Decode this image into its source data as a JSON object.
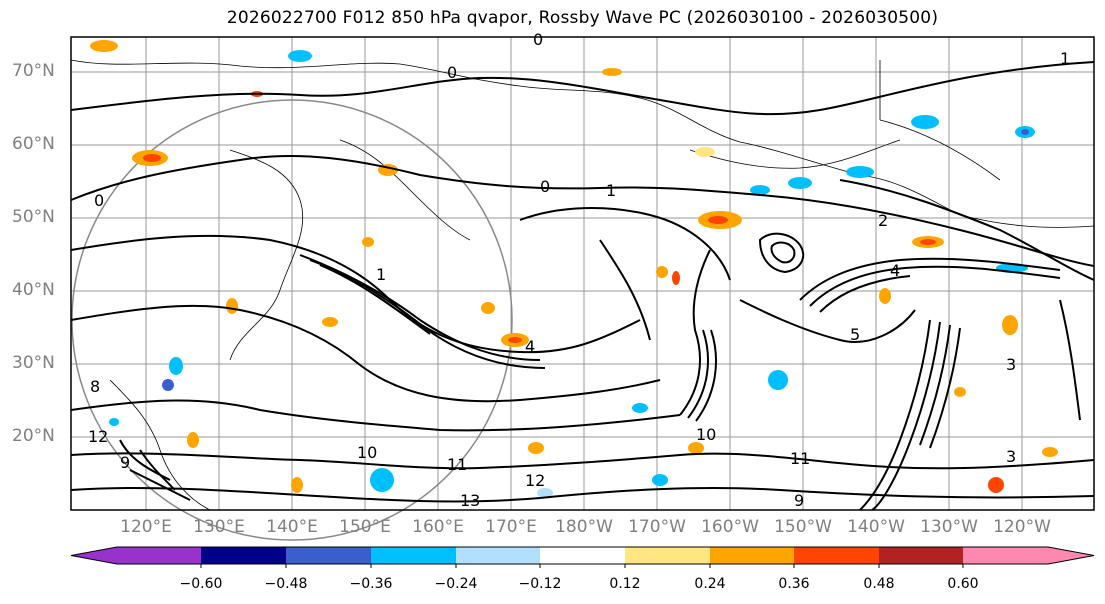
{
  "title": "2026022700 F012 850 hPa qvapor, Rossby Wave PC (2026030100 - 2026030500)",
  "latitude_labels": [
    "70°N",
    "60°N",
    "50°N",
    "40°N",
    "30°N",
    "20°N"
  ],
  "longitude_labels": [
    "120°E",
    "130°E",
    "140°E",
    "150°E",
    "160°E",
    "170°E",
    "180°W",
    "170°W",
    "160°W",
    "150°W",
    "140°W",
    "130°W",
    "120°W"
  ],
  "colorbar": {
    "ticks": [
      "−0.60",
      "−0.48",
      "−0.36",
      "−0.24",
      "−0.12",
      "0.12",
      "0.24",
      "0.36",
      "0.48",
      "0.60"
    ],
    "colors": [
      "#9932cc",
      "#00008b",
      "#3a5fcd",
      "#00bfff",
      "#b2dffc",
      "#ffffff",
      "#ffe680",
      "#ffa500",
      "#ff4500",
      "#b22222",
      "#ff88b0"
    ]
  },
  "contour_labels": [
    "0",
    "0",
    "0",
    "0",
    "1",
    "1",
    "1",
    "2",
    "4",
    "4",
    "5",
    "8",
    "9",
    "10",
    "10",
    "11",
    "11",
    "12",
    "12",
    "13",
    "3",
    "3",
    "9"
  ]
}
